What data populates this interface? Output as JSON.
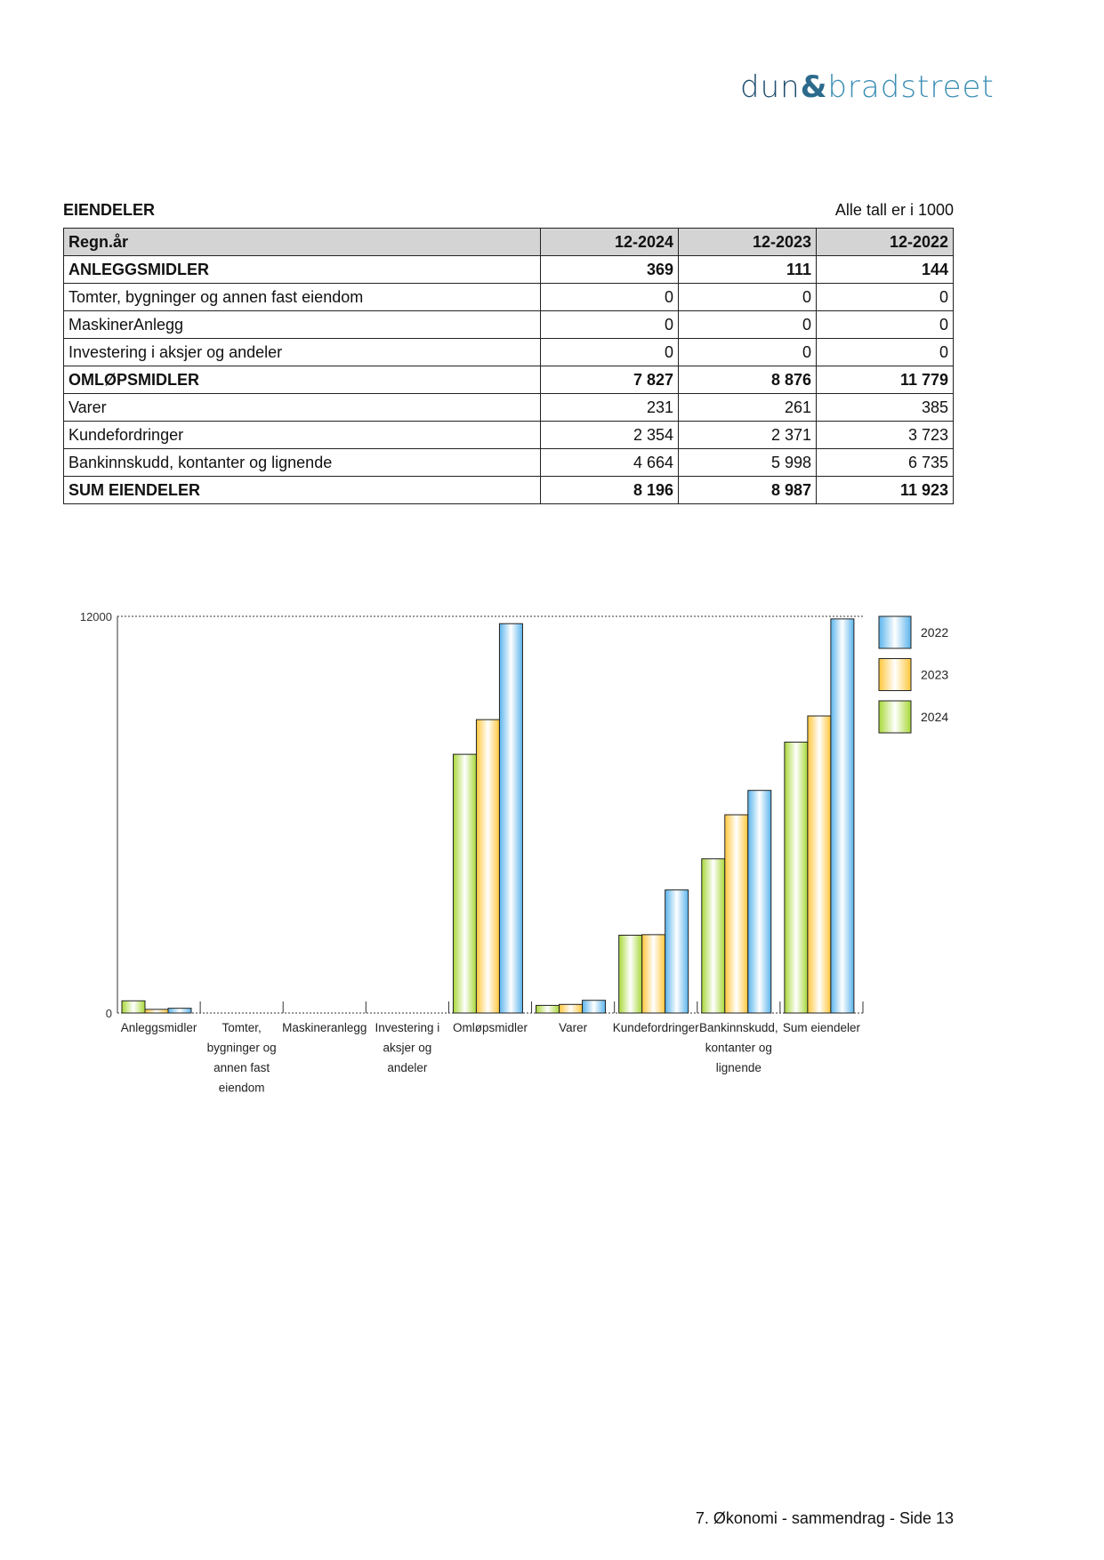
{
  "logo": {
    "part1": "dun",
    "amp": "&",
    "part2": "bradstreet"
  },
  "section": {
    "title": "EIENDELER",
    "unit_note": "Alle tall er i 1000"
  },
  "table": {
    "headers": [
      "Regn.år",
      "12-2024",
      "12-2023",
      "12-2022"
    ],
    "rows": [
      {
        "label": "ANLEGGSMIDLER",
        "values": [
          "369",
          "111",
          "144"
        ],
        "bold": true
      },
      {
        "label": "Tomter, bygninger og annen fast eiendom",
        "values": [
          "0",
          "0",
          "0"
        ]
      },
      {
        "label": "MaskinerAnlegg",
        "values": [
          "0",
          "0",
          "0"
        ]
      },
      {
        "label": "Investering i aksjer og andeler",
        "values": [
          "0",
          "0",
          "0"
        ]
      },
      {
        "label": "OMLØPSMIDLER",
        "values": [
          "7 827",
          "8 876",
          "11 779"
        ],
        "bold": true
      },
      {
        "label": "Varer",
        "values": [
          "231",
          "261",
          "385"
        ]
      },
      {
        "label": "Kundefordringer",
        "values": [
          "2 354",
          "2 371",
          "3 723"
        ]
      },
      {
        "label": "Bankinnskudd, kontanter og lignende",
        "values": [
          "4 664",
          "5 998",
          "6 735"
        ]
      },
      {
        "label": "SUM EIENDELER",
        "values": [
          "8 196",
          "8 987",
          "11 923"
        ],
        "bold": true
      }
    ]
  },
  "chart_data": {
    "type": "bar",
    "categories": [
      [
        "Anleggsmidler"
      ],
      [
        "Tomter,",
        "bygninger og",
        "annen fast",
        "eiendom"
      ],
      [
        "Maskineranlegg"
      ],
      [
        "Investering i",
        "aksjer og",
        "andeler"
      ],
      [
        "Omløpsmidler"
      ],
      [
        "Varer"
      ],
      [
        "Kundefordringer"
      ],
      [
        "Bankinnskudd,",
        "kontanter og",
        "lignende"
      ],
      [
        "Sum eiendeler"
      ]
    ],
    "series": [
      {
        "name": "2024",
        "color": "#a8d838",
        "values": [
          369,
          0,
          0,
          0,
          7827,
          231,
          2354,
          4664,
          8196
        ]
      },
      {
        "name": "2023",
        "color": "#ffc63a",
        "values": [
          111,
          0,
          0,
          0,
          8876,
          261,
          2371,
          5998,
          8987
        ]
      },
      {
        "name": "2022",
        "color": "#5ab4ec",
        "values": [
          144,
          0,
          0,
          0,
          11779,
          385,
          3723,
          6735,
          11923
        ]
      }
    ],
    "legend_order": [
      "2022",
      "2023",
      "2024"
    ],
    "yticks": [
      "0",
      "12000"
    ],
    "ylim": [
      0,
      12000
    ],
    "legend": "right"
  },
  "footer": {
    "text": "7. Økonomi - sammendrag - Side 13"
  }
}
